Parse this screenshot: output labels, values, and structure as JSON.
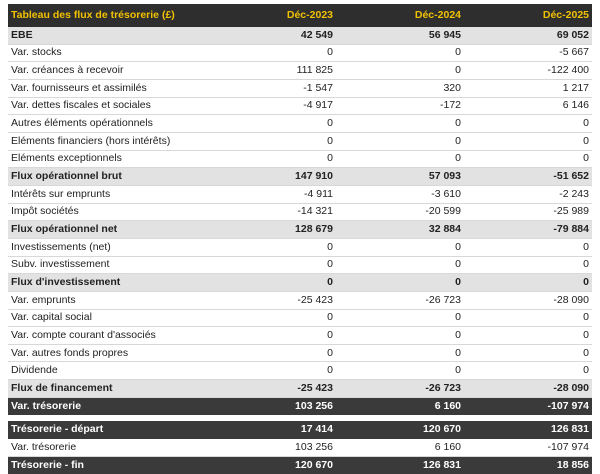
{
  "table": {
    "header": [
      "Tableau des flux de trésorerie (£)",
      "Déc-2023",
      "Déc-2024",
      "Déc-2025"
    ],
    "rows": [
      [
        "EBE",
        "42 549",
        "56 945",
        "69 052"
      ],
      [
        "Var. stocks",
        "0",
        "0",
        "-5 667"
      ],
      [
        "Var. créances à recevoir",
        "111 825",
        "0",
        "-122 400"
      ],
      [
        "Var. fournisseurs et assimilés",
        "-1 547",
        "320",
        "1 217"
      ],
      [
        "Var. dettes fiscales et sociales",
        "-4 917",
        "-172",
        "6 146"
      ],
      [
        "Autres éléments opérationnels",
        "0",
        "0",
        "0"
      ],
      [
        "Eléments financiers (hors intérêts)",
        "0",
        "0",
        "0"
      ],
      [
        "Eléments exceptionnels",
        "0",
        "0",
        "0"
      ],
      [
        "Flux opérationnel brut",
        "147 910",
        "57 093",
        "-51 652"
      ],
      [
        "Intérêts sur emprunts",
        "-4 911",
        "-3 610",
        "-2 243"
      ],
      [
        "Impôt sociétés",
        "-14 321",
        "-20 599",
        "-25 989"
      ],
      [
        "Flux opérationnel net",
        "128 679",
        "32 884",
        "-79 884"
      ],
      [
        "Investissements (net)",
        "0",
        "0",
        "0"
      ],
      [
        "Subv. investissement",
        "0",
        "0",
        "0"
      ],
      [
        "Flux d'investissement",
        "0",
        "0",
        "0"
      ],
      [
        "Var. emprunts",
        "-25 423",
        "-26 723",
        "-28 090"
      ],
      [
        "Var. capital social",
        "0",
        "0",
        "0"
      ],
      [
        "Var. compte courant d'associés",
        "0",
        "0",
        "0"
      ],
      [
        "Var. autres fonds propres",
        "0",
        "0",
        "0"
      ],
      [
        "Dividende",
        "0",
        "0",
        "0"
      ],
      [
        "Flux de financement",
        "-25 423",
        "-26 723",
        "-28 090"
      ],
      [
        "Var. trésorerie",
        "103 256",
        "6 160",
        "-107 974"
      ]
    ],
    "summary_rows": [
      [
        "Trésorerie - départ",
        "17 414",
        "120 670",
        "126 831"
      ],
      [
        "Var. trésorerie",
        "103 256",
        "6 160",
        "-107 974"
      ],
      [
        "Trésorerie - fin",
        "120 670",
        "126 831",
        "18 856"
      ]
    ]
  }
}
